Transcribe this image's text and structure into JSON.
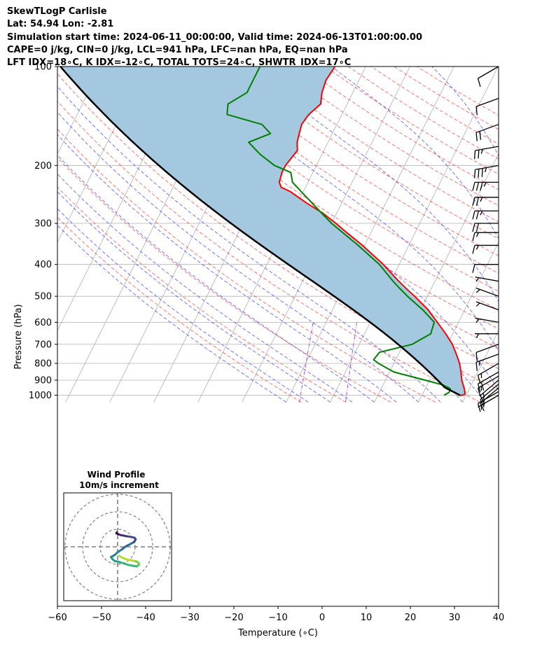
{
  "header": {
    "line1": "SkewTLogP Carlisle",
    "line2": "Lat: 54.94   Lon: -2.81",
    "line3": "Simulation start time: 2024-06-11_00:00:00, Valid time: 2024-06-13T01:00:00.00",
    "line4": "CAPE=0 j/kg, CIN=0 j/kg, LCL=941 hPa, LFC=nan hPa, EQ=nan hPa",
    "line5": "LFT IDX=18∘C, K IDX=-12∘C, TOTAL TOTS=24∘C, SHWTR_IDX=17∘C"
  },
  "chart_data": {
    "type": "skewt",
    "xlabel": "Temperature (∘C)",
    "ylabel": "Pressure (hPa)",
    "xlim": [
      -60,
      40
    ],
    "ylim": [
      1050,
      100
    ],
    "x_ticks": [
      "−60",
      "−50",
      "−40",
      "−30",
      "−20",
      "−10",
      "0",
      "10",
      "20",
      "30",
      "40"
    ],
    "y_ticks": [
      "100",
      "200",
      "300",
      "400",
      "500",
      "600",
      "700",
      "800",
      "900",
      "1000"
    ],
    "y_tick_values": [
      100,
      200,
      300,
      400,
      500,
      600,
      700,
      800,
      900,
      1000
    ],
    "grid": true,
    "temperature": {
      "color": "#ff0000",
      "p": [
        1003,
        995,
        980,
        950,
        900,
        850,
        800,
        750,
        700,
        650,
        600,
        550,
        500,
        480,
        450,
        400,
        350,
        320,
        300,
        280,
        260,
        240,
        233,
        225,
        210,
        200,
        180,
        170,
        160,
        150,
        140,
        130,
        120,
        110,
        100
      ],
      "t": [
        8.6,
        9.6,
        9.4,
        8.7,
        7.3,
        6.2,
        4.9,
        3.1,
        1.1,
        -1.6,
        -4.8,
        -8.3,
        -12.9,
        -15.0,
        -18.2,
        -23.6,
        -30.5,
        -35.5,
        -39.0,
        -43.0,
        -48.0,
        -53.0,
        -55.5,
        -56.5,
        -57.0,
        -57.0,
        -56.0,
        -57.0,
        -57.5,
        -58.0,
        -57.5,
        -56.0,
        -57.0,
        -57.5,
        -57.0
      ]
    },
    "dewpoint": {
      "color": "#008000",
      "p": [
        1000,
        980,
        960,
        950,
        930,
        900,
        850,
        800,
        780,
        740,
        700,
        650,
        600,
        550,
        500,
        470,
        450,
        400,
        350,
        300,
        270,
        240,
        225,
        210,
        200,
        185,
        170,
        160,
        150,
        140,
        130,
        120,
        110,
        100
      ],
      "t": [
        5.0,
        5.8,
        5.8,
        5.3,
        3.5,
        -1.0,
        -9.0,
        -13.5,
        -15.0,
        -14.5,
        -8.0,
        -5.0,
        -5.5,
        -9.5,
        -14.5,
        -17.5,
        -19.5,
        -24.5,
        -31.5,
        -40.0,
        -45.0,
        -50.5,
        -53.5,
        -55.0,
        -59.5,
        -64.0,
        -68.0,
        -64.0,
        -67.0,
        -76.0,
        -77.0,
        -74.0,
        -74.0,
        -74.0
      ]
    },
    "parcel": {
      "color": "#000000",
      "start_p": 1000,
      "start_t": 8.6,
      "start_td": 5.0,
      "top_p": 100
    },
    "cin_fill_color": "#a5c8e1",
    "dry_adiabat_color": "#ff0000",
    "moist_adiabat_color": "#0000ff",
    "mixing_ratio_color": "#9400d3",
    "wind_barbs": {
      "p": [
        1000,
        975,
        950,
        925,
        900,
        875,
        850,
        800,
        750,
        700,
        650,
        600,
        550,
        500,
        450,
        400,
        350,
        320,
        300,
        275,
        250,
        225,
        200,
        175,
        150,
        125,
        100
      ],
      "speed_kt": [
        5,
        10,
        15,
        15,
        15,
        15,
        20,
        15,
        15,
        10,
        5,
        5,
        5,
        5,
        5,
        10,
        15,
        15,
        20,
        25,
        25,
        35,
        35,
        25,
        20,
        10,
        10
      ],
      "dir": [
        240,
        240,
        230,
        230,
        230,
        240,
        240,
        240,
        250,
        250,
        270,
        280,
        290,
        290,
        280,
        270,
        270,
        270,
        270,
        270,
        270,
        270,
        260,
        260,
        250,
        250,
        240
      ]
    },
    "hodograph": {
      "title": "Wind Profile",
      "subtitle": "10m/s increment",
      "u": [
        0.5,
        1.5,
        3.0,
        4.5,
        6.0,
        6.8,
        7.2,
        6.4,
        5.0,
        3.5,
        2.0,
        0.7,
        -1.0,
        -1.8,
        -2.2,
        -1.5,
        -0.8,
        0.0,
        1.5,
        2.8,
        4.0,
        5.5,
        6.0,
        5.6,
        4.3,
        3.0,
        2.0,
        1.0,
        0.2,
        -0.4,
        -0.3
      ],
      "v": [
        -3.0,
        -3.6,
        -4.2,
        -4.5,
        -4.8,
        -5.2,
        -5.9,
        -6.5,
        -6.3,
        -6.0,
        -5.5,
        -5.1,
        -4.7,
        -4.0,
        -3.4,
        -3.0,
        -2.6,
        -1.8,
        -0.8,
        0.2,
        0.8,
        1.6,
        2.5,
        3.0,
        3.3,
        3.5,
        3.7,
        3.9,
        4.2,
        4.5,
        4.8
      ]
    }
  }
}
